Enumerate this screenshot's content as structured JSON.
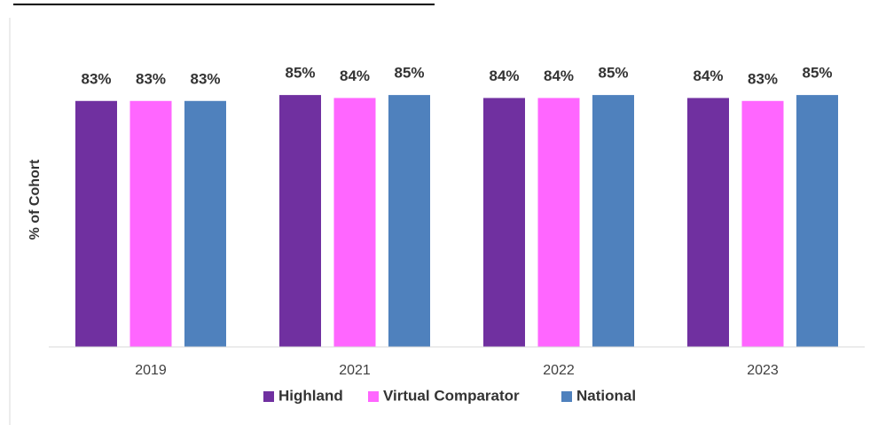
{
  "chart_data": {
    "type": "bar",
    "y_label": "% of Cohort",
    "categories": [
      "2019",
      "2021",
      "2022",
      "2023"
    ],
    "series": [
      {
        "name": "Highland",
        "color": "#7030a0",
        "values": [
          83,
          85,
          84,
          84
        ],
        "value_labels": [
          "83%",
          "85%",
          "84%",
          "84%"
        ]
      },
      {
        "name": "Virtual Comparator",
        "color": "#ff66ff",
        "values": [
          83,
          84,
          84,
          83
        ],
        "value_labels": [
          "83%",
          "84%",
          "84%",
          "83%"
        ]
      },
      {
        "name": "National",
        "color": "#4f81bd",
        "values": [
          83,
          85,
          85,
          85
        ],
        "value_labels": [
          "83%",
          "85%",
          "85%",
          "85%"
        ]
      }
    ],
    "ylim": [
      0,
      100
    ],
    "legend": "bottom"
  }
}
